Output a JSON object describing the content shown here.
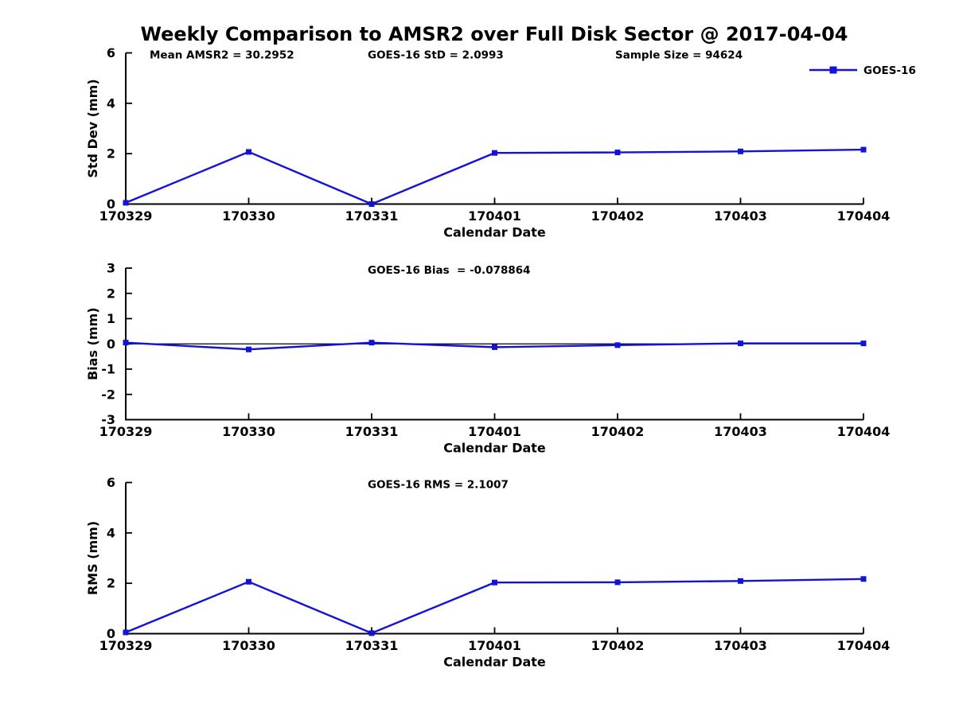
{
  "title": "Weekly Comparison to AMSR2 over Full Disk Sector @ 2017-04-04",
  "colors": {
    "series": "#1212d8",
    "axis": "#000000",
    "text": "#000000",
    "background": "#ffffff"
  },
  "chart_data": [
    {
      "id": "std-dev",
      "type": "line",
      "annotations": [
        "Mean AMSR2 = 30.2952",
        "GOES-16 StD = 2.0993",
        "Sample Size = 94624"
      ],
      "categories": [
        "170329",
        "170330",
        "170331",
        "170401",
        "170402",
        "170403",
        "170404"
      ],
      "series": [
        {
          "name": "GOES-16",
          "values": [
            0.05,
            2.07,
            0.0,
            2.03,
            2.05,
            2.09,
            2.16
          ]
        }
      ],
      "xlabel": "Calendar Date",
      "ylabel": "Std Dev (mm)",
      "ylim": [
        0,
        6
      ],
      "yticks": [
        0,
        2,
        4,
        6
      ],
      "grid": false,
      "zero_line": false,
      "show_legend": true,
      "legend_position": "top-right",
      "legend_label": "GOES-16"
    },
    {
      "id": "bias",
      "type": "line",
      "annotations": [
        "GOES-16 Bias  = -0.078864"
      ],
      "categories": [
        "170329",
        "170330",
        "170331",
        "170401",
        "170402",
        "170403",
        "170404"
      ],
      "series": [
        {
          "name": "GOES-16",
          "values": [
            0.05,
            -0.22,
            0.05,
            -0.13,
            -0.05,
            0.02,
            0.02
          ]
        }
      ],
      "xlabel": "Calendar Date",
      "ylabel": "Bias (mm)",
      "ylim": [
        -3,
        3
      ],
      "yticks": [
        -3,
        -2,
        -1,
        0,
        1,
        2,
        3
      ],
      "grid": false,
      "zero_line": true,
      "show_legend": false
    },
    {
      "id": "rms",
      "type": "line",
      "annotations": [
        "GOES-16 RMS = 2.1007"
      ],
      "categories": [
        "170329",
        "170330",
        "170331",
        "170401",
        "170402",
        "170403",
        "170404"
      ],
      "series": [
        {
          "name": "GOES-16",
          "values": [
            0.05,
            2.06,
            0.02,
            2.03,
            2.04,
            2.09,
            2.17
          ]
        }
      ],
      "xlabel": "Calendar Date",
      "ylabel": "RMS (mm)",
      "ylim": [
        0,
        6
      ],
      "yticks": [
        0,
        2,
        4,
        6
      ],
      "grid": false,
      "zero_line": false,
      "show_legend": false
    }
  ]
}
